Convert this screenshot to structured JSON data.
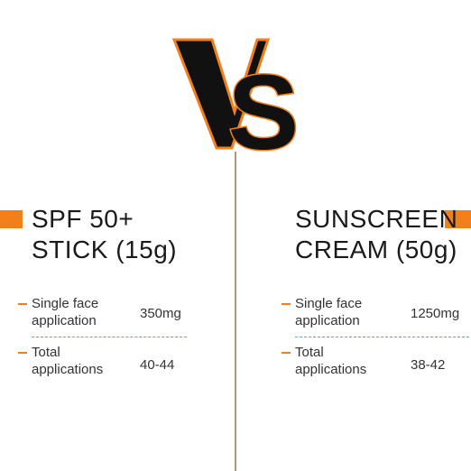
{
  "colors": {
    "accent": "#f07f1c",
    "logo_black": "#111111",
    "divider": "#b6957a"
  },
  "logo": {
    "text": "VS"
  },
  "left": {
    "title_line1": "SPF 50+",
    "title_line2": "STICK (15g)",
    "rows": [
      {
        "label_line1": "Single face",
        "label_line2": "application",
        "value": "350mg"
      },
      {
        "label_line1": "Total",
        "label_line2": "applications",
        "value": "40-44"
      }
    ]
  },
  "right": {
    "title_line1": "SUNSCREEN",
    "title_line2": "CREAM (50g)",
    "rows": [
      {
        "label_line1": "Single face",
        "label_line2": "application",
        "value": "1250mg"
      },
      {
        "label_line1": "Total",
        "label_line2": "applications",
        "value": "38-42"
      }
    ]
  }
}
